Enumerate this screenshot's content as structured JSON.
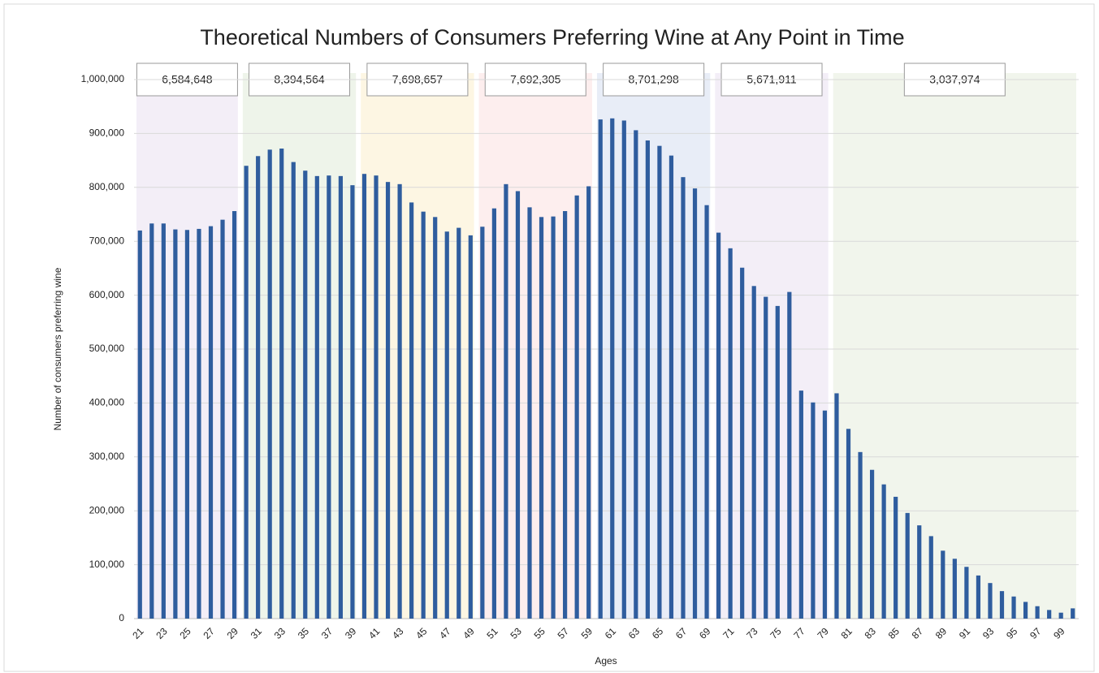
{
  "chart_data": {
    "type": "bar",
    "title": "Theoretical Numbers of Consumers Preferring Wine at Any Point in Time",
    "x_label": "Ages",
    "y_label": "Number of consumers preferring wine",
    "categories": [
      "21",
      null,
      "23",
      null,
      "25",
      null,
      "27",
      null,
      "29",
      null,
      "31",
      null,
      "33",
      null,
      "35",
      null,
      "37",
      null,
      "39",
      null,
      "41",
      null,
      "43",
      null,
      "45",
      null,
      "47",
      null,
      "49",
      null,
      "51",
      null,
      "53",
      null,
      "55",
      null,
      "57",
      null,
      "59",
      null,
      "61",
      null,
      "63",
      null,
      "65",
      null,
      "67",
      null,
      "69",
      null,
      "71",
      null,
      "73",
      null,
      "75",
      null,
      "77",
      null,
      "79",
      null,
      "81",
      null,
      "83",
      null,
      "85",
      null,
      "87",
      null,
      "89",
      null,
      "91",
      null,
      "93",
      null,
      "95",
      null,
      "97",
      null,
      "99",
      null
    ],
    "values": [
      720000,
      733000,
      733000,
      722000,
      721000,
      723000,
      728000,
      740000,
      756000,
      840000,
      858000,
      870000,
      872000,
      847000,
      831000,
      821000,
      822000,
      821000,
      804000,
      825000,
      822000,
      810000,
      806000,
      772000,
      755000,
      745000,
      718000,
      725000,
      711000,
      727000,
      761000,
      806000,
      793000,
      763000,
      745000,
      746000,
      756000,
      785000,
      802000,
      926000,
      928000,
      924000,
      906000,
      887000,
      877000,
      859000,
      819000,
      798000,
      767000,
      716000,
      687000,
      651000,
      617000,
      597000,
      580000,
      606000,
      423000,
      401000,
      386000,
      418000,
      352000,
      309000,
      276000,
      249000,
      226000,
      196000,
      173000,
      153000,
      126000,
      111000,
      96000,
      80000,
      66000,
      51000,
      41000,
      31000,
      23000,
      16000,
      11000,
      19000
    ],
    "color": "#2f5d9e",
    "ylim": [
      0,
      1000000
    ],
    "yticks": [
      0,
      {
        "value": 100000,
        "label": "100,000"
      },
      {
        "value": 200000,
        "label": "200,000"
      },
      {
        "value": 300000,
        "label": "300,000"
      },
      {
        "value": 400000,
        "label": "400,000"
      },
      {
        "value": 500000,
        "label": "500,000"
      },
      {
        "value": 600000,
        "label": "600,000"
      },
      {
        "value": 700000,
        "label": "700,000"
      },
      {
        "value": 800000,
        "label": "800,000"
      },
      {
        "value": 900000,
        "label": "900,000"
      },
      {
        "value": 1000000,
        "label": "1,000,000"
      }
    ],
    "grid": true,
    "group_totals": [
      {
        "value": 6584648,
        "label": "6,584,648",
        "color": "#f3eef7"
      },
      {
        "value": 8394564,
        "label": "8,394,564",
        "color": "#eef4ea"
      },
      {
        "value": 7698657,
        "label": "7,698,657",
        "color": "#fdf6e3"
      },
      {
        "value": 7692305,
        "label": "7,692,305",
        "color": "#fdeeee"
      },
      {
        "value": 8701298,
        "label": "8,701,298",
        "color": "#e8edf7"
      },
      {
        "value": 5671911,
        "label": "5,671,911",
        "color": "#f3eef7"
      },
      {
        "value": 3037974,
        "label": "3,037,974",
        "color": "#f1f5ec"
      }
    ]
  }
}
